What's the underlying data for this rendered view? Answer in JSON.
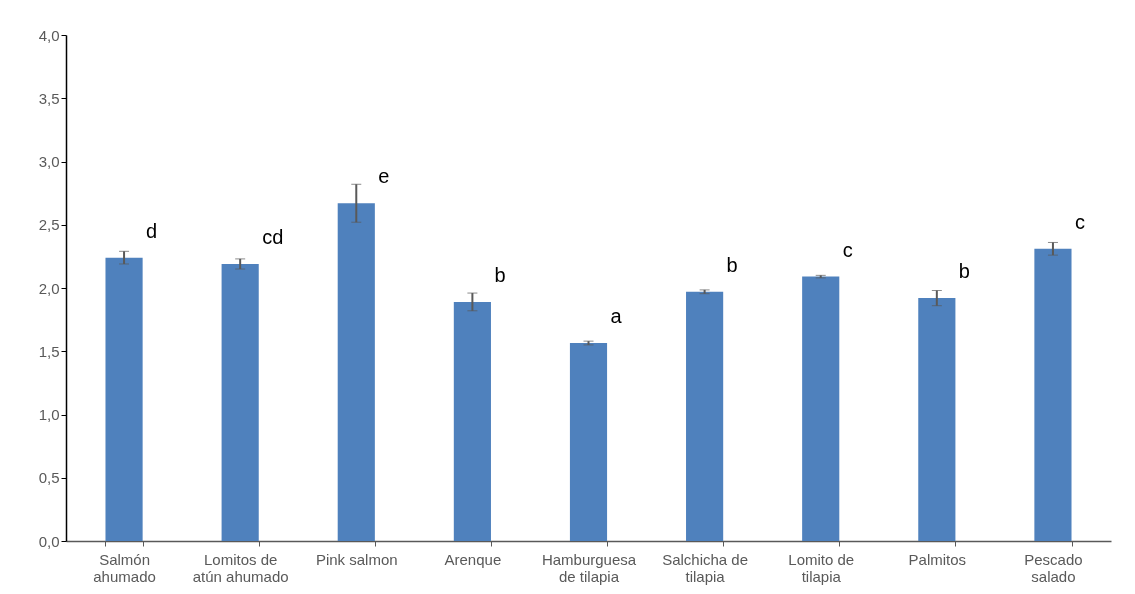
{
  "chart_data": {
    "type": "bar",
    "categories": [
      "Salmón ahumado",
      "Lomitos de atún ahumado",
      "Pink salmon",
      "Arenque",
      "Hamburguesa de tilapia",
      "Salchicha de tilapia",
      "Lomito de tilapia",
      "Palmitos",
      "Pescado salado"
    ],
    "series": [
      {
        "color": "#4f81bd",
        "values": [
          2.24,
          2.19,
          2.67,
          1.89,
          1.565,
          1.97,
          2.09,
          1.92,
          2.31
        ],
        "errors": [
          0.05,
          0.04,
          0.15,
          0.07,
          0.015,
          0.015,
          0.01,
          0.06,
          0.05
        ]
      }
    ],
    "ylim": [
      0,
      4
    ],
    "yticks": [
      {
        "value": 0,
        "label": "0,0"
      },
      {
        "value": 0.5,
        "label": "0,5"
      },
      {
        "value": 1,
        "label": "1,0"
      },
      {
        "value": 1.5,
        "label": "1,5"
      },
      {
        "value": 2,
        "label": "2,0"
      },
      {
        "value": 2.5,
        "label": "2,5"
      },
      {
        "value": 3,
        "label": "3,0"
      },
      {
        "value": 3.5,
        "label": "3,5"
      },
      {
        "value": 4,
        "label": "4,0"
      }
    ],
    "annotations": [
      {
        "text": "d",
        "x": "Salmón ahumado",
        "y": 2.24
      },
      {
        "text": "cd",
        "x": "Lomitos de atún ahumado",
        "y": 2.19
      },
      {
        "text": "e",
        "x": "Pink salmon",
        "y": 2.67
      },
      {
        "text": "b",
        "x": "Arenque",
        "y": 1.89
      },
      {
        "text": "a",
        "x": "Hamburguesa de tilapia",
        "y": 1.565
      },
      {
        "text": "b",
        "x": "Salchicha de tilapia",
        "y": 1.97
      },
      {
        "text": "c",
        "x": "Lomito de tilapia",
        "y": 2.09
      },
      {
        "text": "b",
        "x": "Palmitos",
        "y": 1.92
      },
      {
        "text": "c",
        "x": "Pescado salado",
        "y": 2.31
      }
    ],
    "grid": false
  }
}
